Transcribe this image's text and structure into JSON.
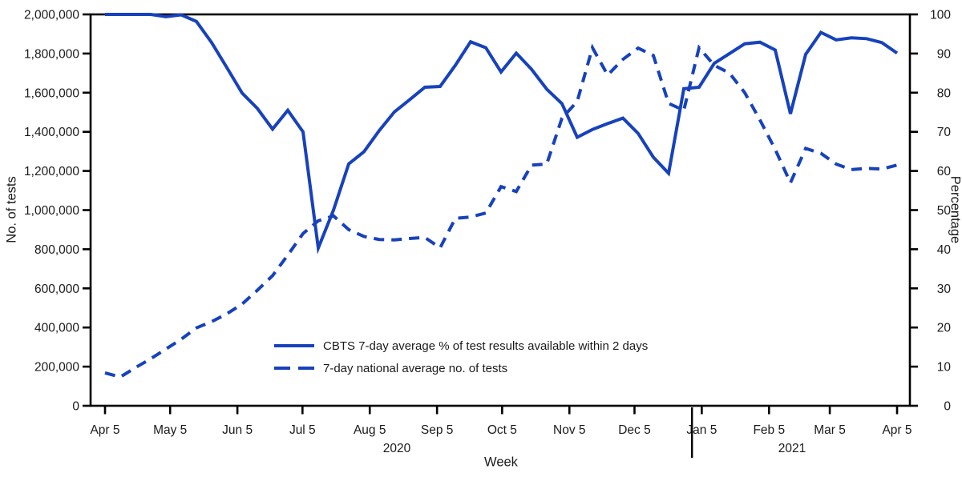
{
  "chart_data": {
    "type": "line",
    "title": "",
    "xlabel": "Week",
    "x_tick_labels": [
      "Apr 5",
      "May 5",
      "Jun 5",
      "Jul 5",
      "Aug 5",
      "Sep 5",
      "Oct 5",
      "Nov 5",
      "Dec 5",
      "Jan 5",
      "Feb 5",
      "Mar 5",
      "Apr 5"
    ],
    "x_tick_day_offsets": [
      0,
      30,
      61,
      91,
      122,
      153,
      183,
      214,
      244,
      275,
      306,
      334,
      365
    ],
    "x_total_days": 365,
    "year_labels": [
      "2020",
      "2021"
    ],
    "left_axis": {
      "label": "No. of tests",
      "min": 0,
      "max": 2000000,
      "step": 200000
    },
    "right_axis": {
      "label": "Percentage",
      "min": 0,
      "max": 100,
      "step": 10
    },
    "grid": false,
    "legend_position": "inside-bottom-center",
    "series": [
      {
        "name": "CBTS 7-day average % of test results available within 2 days",
        "axis": "right",
        "line_style": "solid",
        "values": [
          100,
          100,
          100,
          100,
          99.4,
          99.9,
          98.2,
          92.8,
          86.4,
          79.9,
          76,
          70.7,
          75.5,
          70,
          40.3,
          50,
          61.8,
          64.9,
          70.3,
          75.1,
          78.2,
          81.4,
          81.6,
          87,
          93,
          91.5,
          85.3,
          90.1,
          86,
          80.9,
          77.2,
          68.6,
          70.6,
          72.1,
          73.5,
          69.6,
          63.5,
          59.4,
          81,
          81.4,
          87.5,
          90,
          92.5,
          92.9,
          90.9,
          74.6,
          89.8,
          95.4,
          93.5,
          94,
          93.8,
          92.8,
          90.1
        ]
      },
      {
        "name": "7-day national average no. of tests",
        "axis": "left",
        "line_style": "dashed",
        "values": [
          168000,
          147000,
          195000,
          240000,
          290000,
          340000,
          398000,
          430000,
          470000,
          520000,
          590000,
          665000,
          770000,
          880000,
          945000,
          970000,
          900000,
          865000,
          850000,
          848000,
          855000,
          860000,
          807000,
          958000,
          965000,
          985000,
          1120000,
          1095000,
          1230000,
          1235000,
          1470000,
          1555000,
          1830000,
          1690000,
          1770000,
          1828000,
          1790000,
          1545000,
          1510000,
          1830000,
          1740000,
          1700000,
          1600000,
          1460000,
          1310000,
          1140000,
          1315000,
          1290000,
          1235000,
          1207000,
          1213000,
          1210000,
          1230000
        ]
      }
    ],
    "colors": {
      "line": "#1742BC",
      "axis": "#000000",
      "text": "#1A1A1A"
    }
  }
}
